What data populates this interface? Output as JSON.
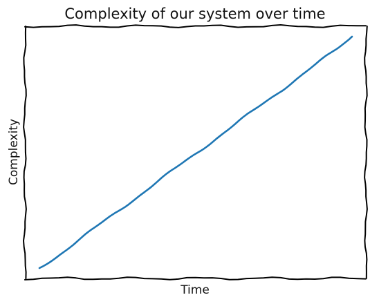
{
  "chart_data": {
    "type": "line",
    "style": "xkcd",
    "title": "Complexity of our system over time",
    "xlabel": "Time",
    "ylabel": "Complexity",
    "xticks": [],
    "yticks": [],
    "grid": false,
    "legend": "none",
    "xlim": [
      0,
      1
    ],
    "ylim": [
      0,
      1
    ],
    "series": [
      {
        "color": "#1f77b4",
        "x": [
          0.0,
          0.05,
          0.1,
          0.15,
          0.2,
          0.25,
          0.3,
          0.35,
          0.4,
          0.45,
          0.5,
          0.55,
          0.6,
          0.65,
          0.7,
          0.75,
          0.8,
          0.85,
          0.9,
          0.95,
          1.0
        ],
        "y": [
          0.0,
          0.045,
          0.095,
          0.145,
          0.195,
          0.245,
          0.295,
          0.345,
          0.395,
          0.445,
          0.495,
          0.545,
          0.595,
          0.645,
          0.695,
          0.745,
          0.795,
          0.845,
          0.895,
          0.945,
          1.0
        ]
      }
    ]
  }
}
